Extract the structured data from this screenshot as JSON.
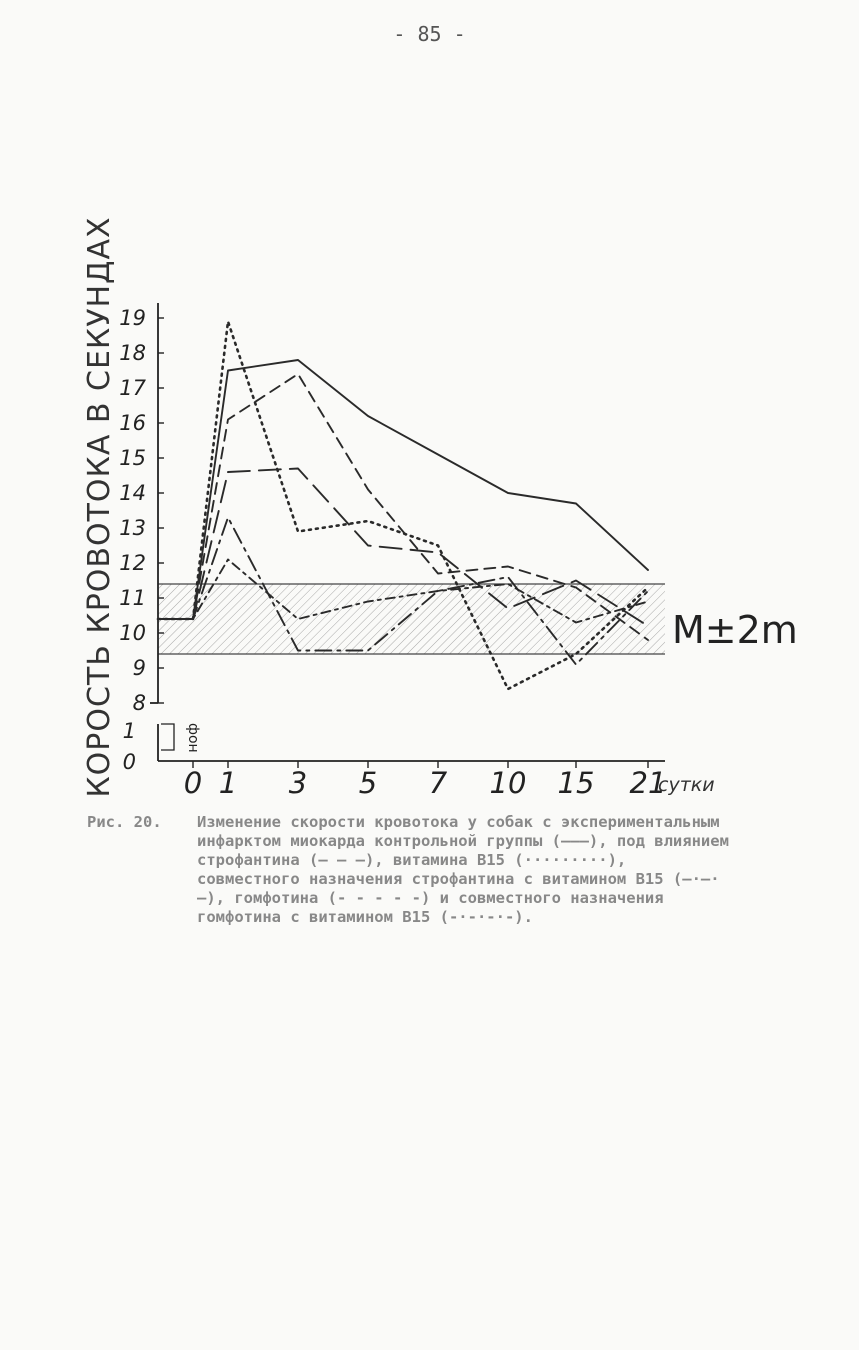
{
  "page_number": "- 85 -",
  "caption": {
    "number": "Рис. 20.",
    "text": "Изменение скорости кровотока у собак с экспериментальным инфарктом миокарда контрольной группы (———), под влиянием строфантина (— — —), витамина B15 (·········), совместного назначения строфантина с витамином B15 (—·—·—), гомфотина (- - - - -) и совместного назначения гомфотина с витамином B15 (-·-·-·-)."
  },
  "chart_data": {
    "type": "line",
    "title": "",
    "xlabel": "сутки",
    "ylabel": "СКОРОСТЬ КРОВОТОКА В СЕКУНДАХ",
    "categories": [
      "0",
      "1",
      "3",
      "5",
      "7",
      "10",
      "15",
      "21"
    ],
    "y_ticks_lower": [
      "0",
      "1"
    ],
    "y_ticks_upper": [
      "8",
      "9",
      "10",
      "11",
      "12",
      "13",
      "14",
      "15",
      "16",
      "17",
      "18",
      "19"
    ],
    "ylim_upper": [
      8,
      19
    ],
    "baseline_label": "фон",
    "band": {
      "label": "M±2m",
      "low": 9.4,
      "high": 11.4
    },
    "series": [
      {
        "name": "контрольная группа",
        "dash": "solid",
        "x": [
          "фон",
          "0",
          "1",
          "3",
          "5",
          "7",
          "10",
          "15",
          "21"
        ],
        "values": [
          10.4,
          10.4,
          17.5,
          17.8,
          16.2,
          15.1,
          14.0,
          13.7,
          11.8
        ]
      },
      {
        "name": "строфантин",
        "dash": "long-dash",
        "x": [
          "фон",
          "0",
          "1",
          "3",
          "5",
          "7",
          "10",
          "15",
          "21"
        ],
        "values": [
          10.4,
          10.4,
          14.6,
          14.7,
          12.5,
          12.3,
          10.7,
          11.5,
          10.2
        ]
      },
      {
        "name": "витамин B15",
        "dash": "dotted",
        "x": [
          "фон",
          "0",
          "1",
          "3",
          "5",
          "7",
          "10",
          "15",
          "21"
        ],
        "values": [
          10.4,
          10.4,
          18.9,
          12.9,
          13.2,
          12.5,
          8.4,
          9.4,
          11.3
        ]
      },
      {
        "name": "строфантин с витамином B15",
        "dash": "dash-dot",
        "x": [
          "фон",
          "0",
          "1",
          "3",
          "5",
          "7",
          "10",
          "15",
          "21"
        ],
        "values": [
          10.4,
          10.4,
          13.3,
          9.5,
          9.5,
          11.2,
          11.6,
          9.1,
          11.2
        ]
      },
      {
        "name": "гомфотин",
        "dash": "dashed",
        "x": [
          "фон",
          "0",
          "1",
          "3",
          "5",
          "7",
          "10",
          "15",
          "21"
        ],
        "values": [
          10.4,
          10.4,
          16.1,
          17.4,
          14.1,
          11.7,
          11.9,
          11.3,
          9.8
        ]
      },
      {
        "name": "гомфотин с витамином B15",
        "dash": "dash-dot-dot",
        "x": [
          "фон",
          "0",
          "1",
          "3",
          "5",
          "7",
          "10",
          "15",
          "21"
        ],
        "values": [
          10.4,
          10.4,
          12.1,
          10.4,
          10.9,
          11.2,
          11.4,
          10.3,
          10.9
        ]
      }
    ]
  }
}
